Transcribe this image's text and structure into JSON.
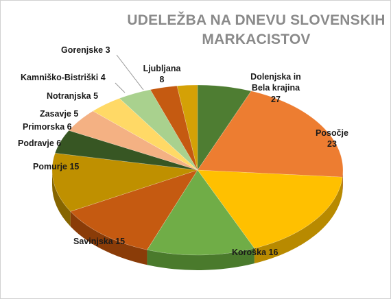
{
  "chart_data": {
    "type": "pie",
    "title_line1": "UDELEŽBA NA DNEVU SLOVENSKIH",
    "title_line2": "MARKACISTOV",
    "slices": [
      {
        "label": "Ljubljana",
        "value": 8,
        "color": "#4e7d32",
        "side": "#2f4f1d"
      },
      {
        "label": "Dolenjska in Bela krajina",
        "label_line1": "Dolenjska in",
        "label_line2": "Bela krajina",
        "value": 27,
        "color": "#ed7d31",
        "side": "#a8521b"
      },
      {
        "label": "Posočje",
        "value": 23,
        "color": "#ffc000",
        "side": "#b88a00"
      },
      {
        "label": "Koroška",
        "value": 16,
        "color": "#70ad47",
        "side": "#4a7a2c"
      },
      {
        "label": "Savinjska",
        "value": 15,
        "color": "#c55a11",
        "side": "#8a3c08"
      },
      {
        "label": "Pomurje",
        "value": 15,
        "color": "#bf9000",
        "side": "#866500"
      },
      {
        "label": "Podravje",
        "value": 6,
        "color": "#375623",
        "side": "#203514"
      },
      {
        "label": "Primorska",
        "value": 6,
        "color": "#f4b183",
        "side": "#b07a55"
      },
      {
        "label": "Zasavje",
        "value": 5,
        "color": "#ffd966",
        "side": "#b89a3f"
      },
      {
        "label": "Notranjska",
        "value": 5,
        "color": "#a9d18e",
        "side": "#789860"
      },
      {
        "label": "Kamniško-Bistriški",
        "value": 4,
        "color": "#c55a11",
        "side": "#8a3c08"
      },
      {
        "label": "Gorenjske",
        "value": 3,
        "color": "#d4a106",
        "side": "#967000"
      }
    ]
  }
}
